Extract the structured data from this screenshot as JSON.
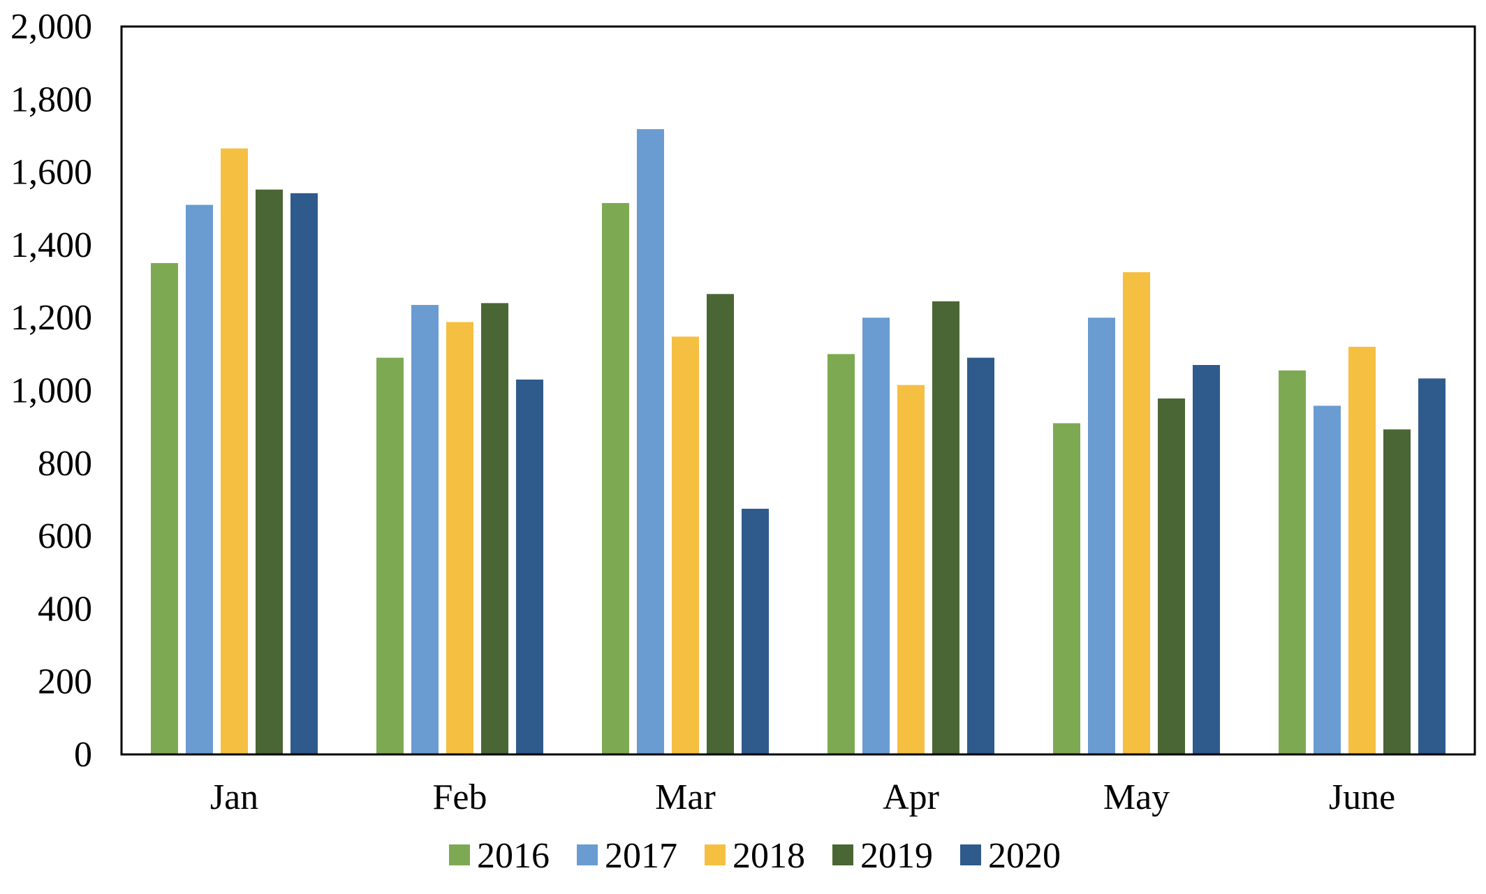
{
  "chart_data": {
    "type": "bar",
    "title": "",
    "xlabel": "",
    "ylabel": "",
    "categories": [
      "Jan",
      "Feb",
      "Mar",
      "Apr",
      "May",
      "June"
    ],
    "ylim": [
      0,
      2000
    ],
    "yticks": [
      0,
      200,
      400,
      600,
      800,
      1000,
      1200,
      1400,
      1600,
      1800,
      2000
    ],
    "ytick_labels": [
      "0",
      "200",
      "400",
      "600",
      "800",
      "1,000",
      "1,200",
      "1,400",
      "1,600",
      "1,800",
      "2,000"
    ],
    "grid": false,
    "legend_position": "bottom",
    "series": [
      {
        "name": "2016",
        "color": "#7ea953",
        "values": [
          1350,
          1090,
          1515,
          1100,
          910,
          1055
        ]
      },
      {
        "name": "2017",
        "color": "#6a9bd1",
        "values": [
          1510,
          1235,
          1718,
          1200,
          1200,
          958
        ]
      },
      {
        "name": "2018",
        "color": "#f5bf42",
        "values": [
          1665,
          1188,
          1148,
          1015,
          1325,
          1120
        ]
      },
      {
        "name": "2019",
        "color": "#4a6634",
        "values": [
          1552,
          1240,
          1265,
          1245,
          978,
          893
        ]
      },
      {
        "name": "2020",
        "color": "#2f5a8c",
        "values": [
          1542,
          1030,
          675,
          1090,
          1070,
          1033
        ]
      }
    ]
  }
}
